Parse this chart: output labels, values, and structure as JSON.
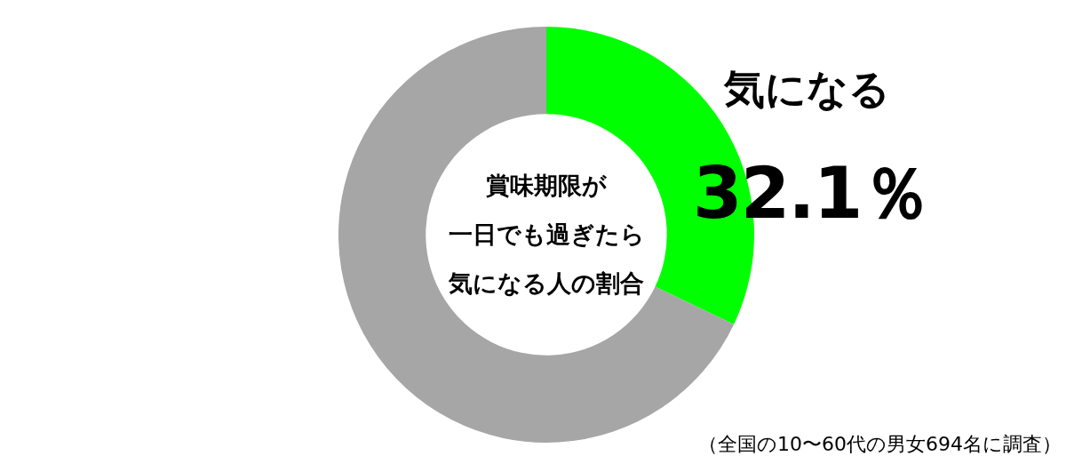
{
  "chart_data": {
    "type": "donut",
    "title": "賞味期限が一日でも過ぎたら気になる人の割合",
    "categories": [
      "気になる",
      null
    ],
    "values": [
      32.1,
      67.9
    ],
    "colors": [
      "#00ff00",
      "#a6a6a6"
    ],
    "value_labels": [
      "32.1％",
      null
    ],
    "annotations": [
      "（全国の10〜60代の男女694名に調査）"
    ]
  }
}
